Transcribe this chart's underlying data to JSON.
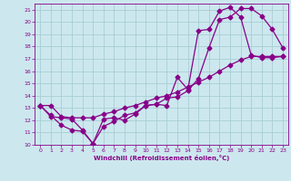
{
  "xlabel": "Windchill (Refroidissement éolien,°C)",
  "background_color": "#cce8ee",
  "grid_color": "#a8cdd4",
  "line_color": "#880088",
  "xlim": [
    -0.5,
    23.5
  ],
  "ylim": [
    10,
    21.5
  ],
  "xticks": [
    0,
    1,
    2,
    3,
    4,
    5,
    6,
    7,
    8,
    9,
    10,
    11,
    12,
    13,
    14,
    15,
    16,
    17,
    18,
    19,
    20,
    21,
    22,
    23
  ],
  "yticks": [
    10,
    11,
    12,
    13,
    14,
    15,
    16,
    17,
    18,
    19,
    20,
    21
  ],
  "curve1_x": [
    0,
    1,
    2,
    3,
    4,
    5,
    6,
    7,
    8,
    9,
    10,
    11,
    12,
    13,
    14,
    15,
    16,
    17,
    18,
    19,
    20,
    21,
    22,
    23
  ],
  "curve1_y": [
    13.2,
    12.3,
    12.2,
    12.1,
    11.2,
    10.1,
    11.5,
    11.9,
    12.4,
    12.6,
    13.2,
    13.3,
    13.8,
    13.9,
    14.4,
    15.4,
    17.9,
    20.2,
    20.4,
    21.1,
    21.1,
    20.5,
    19.4,
    17.9
  ],
  "curve2_x": [
    0,
    1,
    2,
    3,
    4,
    5,
    6,
    7,
    8,
    9,
    10,
    11,
    12,
    13,
    14,
    15,
    16,
    17,
    18,
    19,
    20,
    21,
    22,
    23
  ],
  "curve2_y": [
    13.2,
    12.4,
    11.6,
    11.2,
    11.1,
    10.1,
    12.1,
    12.2,
    12.0,
    12.5,
    13.2,
    13.3,
    13.2,
    15.5,
    14.5,
    19.3,
    19.4,
    20.9,
    21.2,
    20.4,
    17.3,
    17.1,
    17.1,
    17.2
  ],
  "curve3_x": [
    0,
    1,
    2,
    3,
    4,
    5,
    6,
    7,
    8,
    9,
    10,
    11,
    12,
    13,
    14,
    15,
    16,
    17,
    18,
    19,
    20,
    21,
    22,
    23
  ],
  "curve3_y": [
    13.2,
    13.2,
    12.3,
    12.2,
    12.2,
    12.2,
    12.5,
    12.7,
    13.0,
    13.2,
    13.5,
    13.8,
    14.0,
    14.3,
    14.7,
    15.1,
    15.5,
    16.0,
    16.5,
    16.9,
    17.2,
    17.2,
    17.2,
    17.2
  ]
}
